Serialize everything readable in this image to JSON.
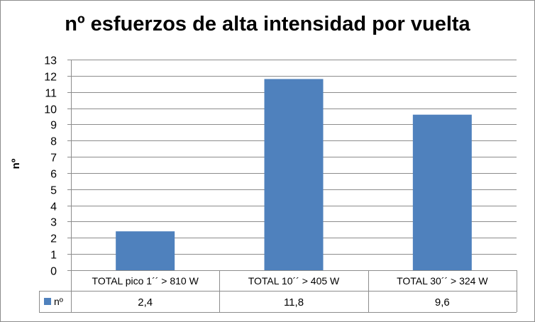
{
  "chart_data": {
    "type": "bar",
    "title": "nº esfuerzos de alta intensidad por vuelta",
    "xlabel": "",
    "ylabel": "nº",
    "ylim": [
      0,
      13
    ],
    "yticks": [
      "0",
      "1",
      "2",
      "3",
      "4",
      "5",
      "6",
      "7",
      "8",
      "9",
      "10",
      "11",
      "12",
      "13"
    ],
    "categories": [
      "TOTAL pico 1´´ > 810 W",
      "TOTAL 10´´ > 405 W",
      "TOTAL 30´´ > 324 W"
    ],
    "series": [
      {
        "name": "nº",
        "values": [
          2.4,
          11.8,
          9.6
        ],
        "labels": [
          "2,4",
          "11,8",
          "9,6"
        ],
        "color": "#4f81bd"
      }
    ],
    "grid": true,
    "data_table": true,
    "colors": {
      "bar": "#4f81bd",
      "grid": "#8c8c8c",
      "axis": "#8c8c8c"
    }
  }
}
